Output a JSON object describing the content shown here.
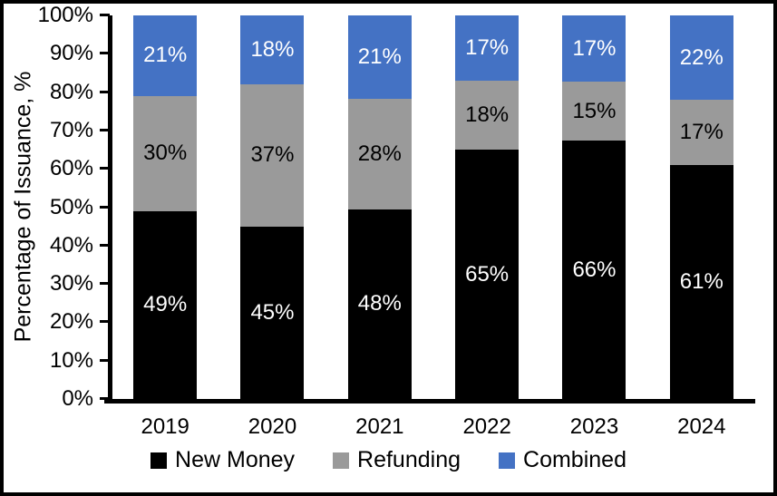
{
  "figure": {
    "background": "#ffffff",
    "border_color": "#000000"
  },
  "chart_data": {
    "type": "bar",
    "stacked": true,
    "stack_mode": "percent",
    "title": "",
    "xlabel": "",
    "ylabel": "Percentage of Issuance, %",
    "categories": [
      "2019",
      "2020",
      "2021",
      "2022",
      "2023",
      "2024"
    ],
    "series": [
      {
        "name": "New Money",
        "color": "#000000",
        "label_color": "#ffffff",
        "values": [
          49,
          45,
          48,
          65,
          66,
          61
        ]
      },
      {
        "name": "Refunding",
        "color": "#9A9A9A",
        "label_color": "#000000",
        "values": [
          30,
          37,
          28,
          18,
          15,
          17
        ]
      },
      {
        "name": "Combined",
        "color": "#4472C4",
        "label_color": "#ffffff",
        "values": [
          21,
          18,
          21,
          17,
          17,
          22
        ]
      }
    ],
    "data_label_suffix": "%",
    "ylim": [
      0,
      100
    ],
    "yticks": [
      "0%",
      "10%",
      "20%",
      "30%",
      "40%",
      "50%",
      "60%",
      "70%",
      "80%",
      "90%",
      "100%"
    ],
    "grid": false,
    "legend_position": "bottom"
  }
}
